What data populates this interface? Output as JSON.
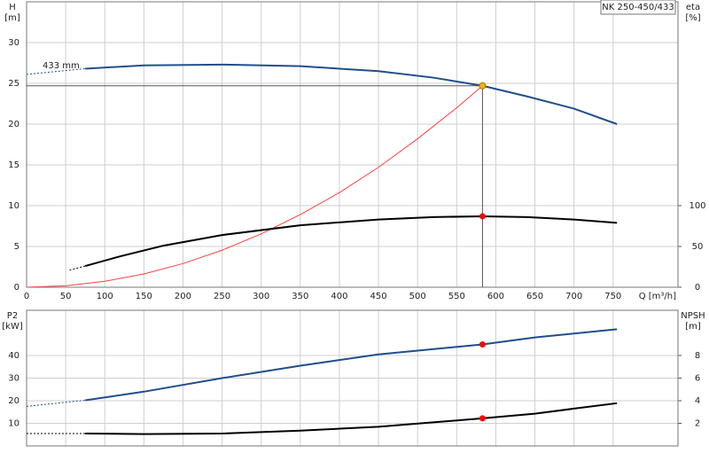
{
  "chart_data": [
    {
      "type": "line",
      "title": "NK 250-450/433",
      "xlabel": "Q [m³/h]",
      "ylabel": [
        "H",
        "[m]"
      ],
      "y2label": [
        "eta",
        "[%]"
      ],
      "annotation": "433 mm",
      "xlim": [
        0,
        833
      ],
      "xticks": [
        0,
        50,
        100,
        150,
        200,
        250,
        300,
        350,
        400,
        450,
        500,
        550,
        600,
        650,
        700,
        750
      ],
      "ylim": [
        0,
        35
      ],
      "yticks": [
        0,
        5,
        10,
        15,
        20,
        25,
        30
      ],
      "y2lim": [
        0,
        350
      ],
      "y2ticks": [
        0,
        50,
        100
      ],
      "grid": true,
      "series": [
        {
          "axis": "y",
          "color": "#1f4e8c",
          "dashed": true,
          "x": [
            0,
            75
          ],
          "values": [
            26.1,
            26.8
          ]
        },
        {
          "axis": "y",
          "color": "#1f4e8c",
          "dashed": false,
          "x": [
            75,
            150,
            250,
            350,
            450,
            520,
            583,
            640,
            700,
            755
          ],
          "values": [
            26.8,
            27.2,
            27.3,
            27.1,
            26.5,
            25.7,
            24.7,
            23.4,
            21.9,
            20.0
          ]
        },
        {
          "axis": "y",
          "color": "#ff4040",
          "dashed": false,
          "thin": true,
          "x": [
            0,
            50,
            100,
            150,
            200,
            250,
            300,
            350,
            400,
            450,
            500,
            550,
            583
          ],
          "values": [
            0,
            0.18,
            0.73,
            1.63,
            2.9,
            4.54,
            6.54,
            8.9,
            11.6,
            14.7,
            18.2,
            22.0,
            24.7
          ]
        },
        {
          "axis": "y2",
          "color": "#000000",
          "dashed": true,
          "x": [
            55,
            75
          ],
          "values": [
            21,
            26
          ]
        },
        {
          "axis": "y2",
          "color": "#000000",
          "dashed": false,
          "x": [
            75,
            120,
            175,
            250,
            350,
            450,
            520,
            583,
            640,
            700,
            755
          ],
          "values": [
            26,
            38,
            51,
            64,
            76,
            83,
            86,
            87,
            86,
            83,
            79
          ]
        }
      ],
      "markers": [
        {
          "axis": "y",
          "x": 583,
          "y": 24.7,
          "color": "#f5b400",
          "guides": true
        },
        {
          "axis": "y2",
          "x": 583,
          "y": 87,
          "color": "#ff0000",
          "guides": false
        }
      ]
    },
    {
      "type": "line",
      "ylabel": [
        "P2",
        "[kW]"
      ],
      "y2label": [
        "NPSH",
        "[m]"
      ],
      "xlim": [
        0,
        833
      ],
      "xticks": [
        0,
        50,
        100,
        150,
        200,
        250,
        300,
        350,
        400,
        450,
        500,
        550,
        600,
        650,
        700,
        750
      ],
      "xtick_labels": false,
      "ylim": [
        0,
        60
      ],
      "yticks": [
        10,
        20,
        30,
        40
      ],
      "y2lim": [
        0,
        12
      ],
      "y2ticks": [
        2,
        4,
        6,
        8
      ],
      "grid": true,
      "series": [
        {
          "axis": "y",
          "color": "#1f4e8c",
          "dashed": true,
          "x": [
            0,
            75
          ],
          "values": [
            17.5,
            20.2
          ]
        },
        {
          "axis": "y",
          "color": "#1f4e8c",
          "dashed": false,
          "x": [
            75,
            150,
            250,
            350,
            450,
            583,
            650,
            755
          ],
          "values": [
            20.2,
            24,
            30,
            35.5,
            40.5,
            44.9,
            48,
            51.6
          ]
        },
        {
          "axis": "y2",
          "color": "#000000",
          "dashed": true,
          "x": [
            0,
            75
          ],
          "values": [
            1.1,
            1.1
          ]
        },
        {
          "axis": "y2",
          "color": "#000000",
          "dashed": false,
          "x": [
            75,
            150,
            250,
            350,
            450,
            583,
            650,
            700,
            755
          ],
          "values": [
            1.1,
            1.05,
            1.1,
            1.35,
            1.7,
            2.44,
            2.85,
            3.3,
            3.78
          ]
        }
      ],
      "markers": [
        {
          "axis": "y",
          "x": 583,
          "y": 44.9,
          "color": "#ff0000",
          "guides": false
        },
        {
          "axis": "y2",
          "x": 583,
          "y": 2.44,
          "color": "#ff0000",
          "guides": false
        }
      ]
    }
  ]
}
